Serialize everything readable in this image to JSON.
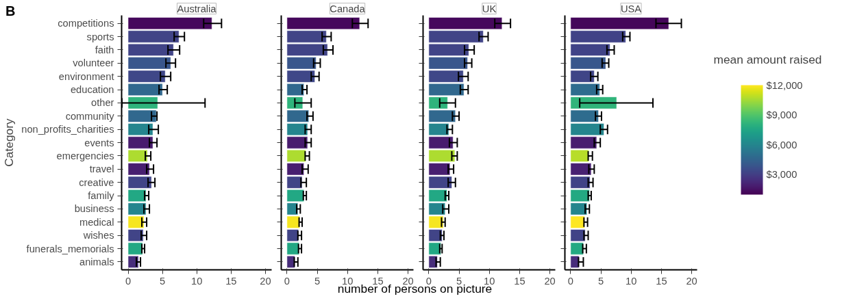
{
  "chart_data": [
    {
      "type": "bar",
      "orientation": "horizontal",
      "title": "Australia",
      "ylabel": "Category",
      "xlabel": "number of persons on picture",
      "annotations": [
        "B"
      ],
      "categories": [
        "competitions",
        "sports",
        "faith",
        "volunteer",
        "environment",
        "education",
        "other",
        "community",
        "non_profits_charities",
        "events",
        "emergencies",
        "travel",
        "creative",
        "family",
        "business",
        "medical",
        "wishes",
        "funerals_memorials",
        "animals"
      ],
      "values": [
        12.2,
        7.4,
        6.6,
        6.2,
        5.4,
        5.0,
        4.3,
        4.1,
        3.6,
        3.6,
        2.8,
        3.1,
        3.4,
        2.6,
        2.6,
        2.3,
        2.2,
        2.1,
        1.5
      ],
      "errors": [
        [
          11.0,
          13.6
        ],
        [
          6.7,
          8.2
        ],
        [
          5.8,
          7.5
        ],
        [
          5.5,
          6.9
        ],
        [
          4.7,
          6.2
        ],
        [
          4.5,
          5.7
        ],
        [
          -0.9,
          11.2
        ],
        [
          3.4,
          4.2
        ],
        [
          3.0,
          4.4
        ],
        [
          3.1,
          4.2
        ],
        [
          2.5,
          3.3
        ],
        [
          2.7,
          3.7
        ],
        [
          2.9,
          3.9
        ],
        [
          2.4,
          3.0
        ],
        [
          2.3,
          3.1
        ],
        [
          2.0,
          2.7
        ],
        [
          1.9,
          2.7
        ],
        [
          2.0,
          2.4
        ],
        [
          1.2,
          1.8
        ]
      ],
      "colors": [
        "#46085c",
        "#414487",
        "#414487",
        "#39568c",
        "#3f4788",
        "#31688e",
        "#2fb47c",
        "#31688e",
        "#25858e",
        "#481c6e",
        "#addc30",
        "#481f70",
        "#414487",
        "#22a884",
        "#25858e",
        "#f6e620",
        "#414487",
        "#22a884",
        "#472d7b"
      ],
      "xlim": [
        -0.95,
        20.9
      ],
      "xticks": [
        0,
        5,
        10,
        15,
        20
      ]
    },
    {
      "type": "bar",
      "orientation": "horizontal",
      "title": "Canada",
      "tick_labels": "x",
      "values": [
        12.0,
        6.5,
        6.7,
        4.8,
        4.6,
        2.8,
        2.6,
        3.6,
        3.4,
        3.4,
        3.1,
        2.8,
        2.5,
        2.8,
        1.8,
        2.1,
        1.9,
        2.0,
        1.3
      ],
      "errors": [
        [
          10.8,
          13.4
        ],
        [
          5.8,
          7.3
        ],
        [
          6.0,
          7.6
        ],
        [
          4.4,
          5.5
        ],
        [
          4.0,
          5.3
        ],
        [
          2.5,
          3.3
        ],
        [
          1.3,
          4.0
        ],
        [
          3.3,
          4.3
        ],
        [
          3.0,
          4.0
        ],
        [
          3.0,
          4.0
        ],
        [
          3.0,
          3.7
        ],
        [
          2.5,
          3.5
        ],
        [
          2.3,
          3.2
        ],
        [
          2.7,
          3.2
        ],
        [
          1.6,
          2.2
        ],
        [
          2.0,
          2.5
        ],
        [
          1.8,
          2.4
        ],
        [
          1.9,
          2.4
        ],
        [
          1.2,
          1.8
        ]
      ],
      "colors": [
        "#46085c",
        "#414487",
        "#414487",
        "#39568c",
        "#3f4788",
        "#31688e",
        "#2fb47c",
        "#31688e",
        "#25858e",
        "#481c6e",
        "#addc30",
        "#481f70",
        "#414487",
        "#22a884",
        "#25858e",
        "#f6e620",
        "#414487",
        "#22a884",
        "#472d7b"
      ],
      "xlim": [
        -0.95,
        20.9
      ],
      "xticks": [
        0,
        5,
        10,
        15,
        20
      ]
    },
    {
      "type": "bar",
      "orientation": "horizontal",
      "title": "UK",
      "tick_labels": "x",
      "values": [
        12.1,
        9.0,
        6.6,
        6.4,
        5.7,
        5.8,
        3.1,
        4.4,
        3.3,
        4.0,
        4.3,
        3.5,
        3.8,
        3.0,
        2.7,
        2.4,
        2.2,
        2.0,
        1.4
      ],
      "errors": [
        [
          10.9,
          13.5
        ],
        [
          8.3,
          9.8
        ],
        [
          5.9,
          7.5
        ],
        [
          5.9,
          7.1
        ],
        [
          4.9,
          6.5
        ],
        [
          5.2,
          6.5
        ],
        [
          1.8,
          4.4
        ],
        [
          3.9,
          5.0
        ],
        [
          3.0,
          3.9
        ],
        [
          3.4,
          4.7
        ],
        [
          3.8,
          4.7
        ],
        [
          3.2,
          4.1
        ],
        [
          3.2,
          4.4
        ],
        [
          2.7,
          3.3
        ],
        [
          2.3,
          3.3
        ],
        [
          2.1,
          2.7
        ],
        [
          1.9,
          2.5
        ],
        [
          1.8,
          2.2
        ],
        [
          1.2,
          1.9
        ]
      ],
      "colors": [
        "#46085c",
        "#414487",
        "#414487",
        "#39568c",
        "#3f4788",
        "#31688e",
        "#2fb47c",
        "#31688e",
        "#25858e",
        "#481c6e",
        "#addc30",
        "#481f70",
        "#414487",
        "#22a884",
        "#25858e",
        "#f6e620",
        "#414487",
        "#22a884",
        "#472d7b"
      ],
      "xlim": [
        -0.95,
        20.9
      ],
      "xticks": [
        0,
        5,
        10,
        15,
        20
      ]
    },
    {
      "type": "bar",
      "orientation": "horizontal",
      "title": "USA",
      "tick_labels": "x",
      "values": [
        16.2,
        9.1,
        6.5,
        5.8,
        3.9,
        4.8,
        7.6,
        4.6,
        5.5,
        4.3,
        3.0,
        3.4,
        3.2,
        3.1,
        2.7,
        2.3,
        2.4,
        2.1,
        1.4
      ],
      "errors": [
        [
          14.1,
          18.3
        ],
        [
          8.6,
          9.8
        ],
        [
          6.0,
          7.2
        ],
        [
          5.2,
          6.3
        ],
        [
          3.3,
          4.5
        ],
        [
          4.3,
          5.3
        ],
        [
          1.5,
          13.6
        ],
        [
          4.1,
          5.1
        ],
        [
          4.9,
          6.1
        ],
        [
          3.9,
          4.9
        ],
        [
          2.9,
          3.6
        ],
        [
          3.0,
          3.9
        ],
        [
          2.9,
          3.7
        ],
        [
          2.9,
          3.4
        ],
        [
          2.4,
          3.1
        ],
        [
          2.2,
          2.8
        ],
        [
          2.2,
          2.9
        ],
        [
          2.0,
          2.6
        ],
        [
          1.3,
          2.1
        ]
      ],
      "cvalues": [
        1200,
        3200,
        3200,
        4000,
        3300,
        4900,
        8200,
        4900,
        6000,
        1900,
        10800,
        2000,
        3200,
        7700,
        6000,
        12000,
        3200,
        7700,
        2400
      ],
      "xlim": [
        -0.95,
        20.9
      ],
      "xticks": [
        0,
        5,
        10,
        15,
        20
      ],
      "clabel": "mean amount raised",
      "clim": [
        1000,
        12000
      ],
      "cticks": [
        {
          "value": 3000,
          "label": "$3,000"
        },
        {
          "value": 6000,
          "label": "$6,000"
        },
        {
          "value": 9000,
          "label": "$9,000"
        },
        {
          "value": 12000,
          "label": "$12,000"
        }
      ]
    }
  ]
}
